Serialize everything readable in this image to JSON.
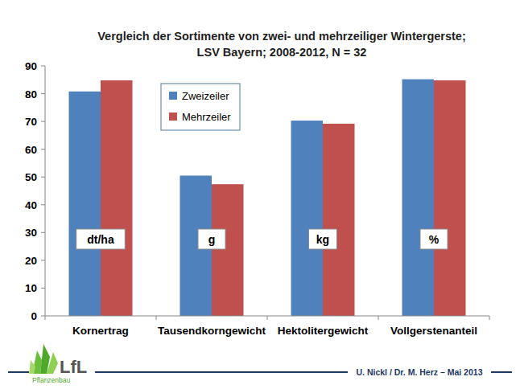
{
  "chart_data": {
    "type": "bar",
    "title": "Vergleich der Sortimente von zwei- und mehrzeiliger Wintergerste;",
    "subtitle": "LSV Bayern; 2008-2012, N = 32",
    "categories": [
      "Kornertrag",
      "Tausendkorngewicht",
      "Hektolitergewicht",
      "Vollgerstenanteil"
    ],
    "series": [
      {
        "name": "Zweizeiler",
        "color": "#4f81bd",
        "values": [
          80.8,
          50.5,
          70.3,
          85.2
        ]
      },
      {
        "name": "Mehrzeiler",
        "color": "#c0504d",
        "values": [
          84.8,
          47.4,
          69.2,
          84.8
        ]
      }
    ],
    "annotations": [
      "dt/ha",
      "g",
      "kg",
      "%"
    ],
    "ylim": [
      0,
      90
    ],
    "yticks": [
      0,
      10,
      20,
      30,
      40,
      50,
      60,
      70,
      80,
      90
    ],
    "grid": false,
    "legend": "top-left",
    "footer": {
      "logo": "LfL",
      "department": "Pflanzenbau",
      "credit": "U. Nickl / Dr. M. Herz – Mai 2013"
    }
  }
}
